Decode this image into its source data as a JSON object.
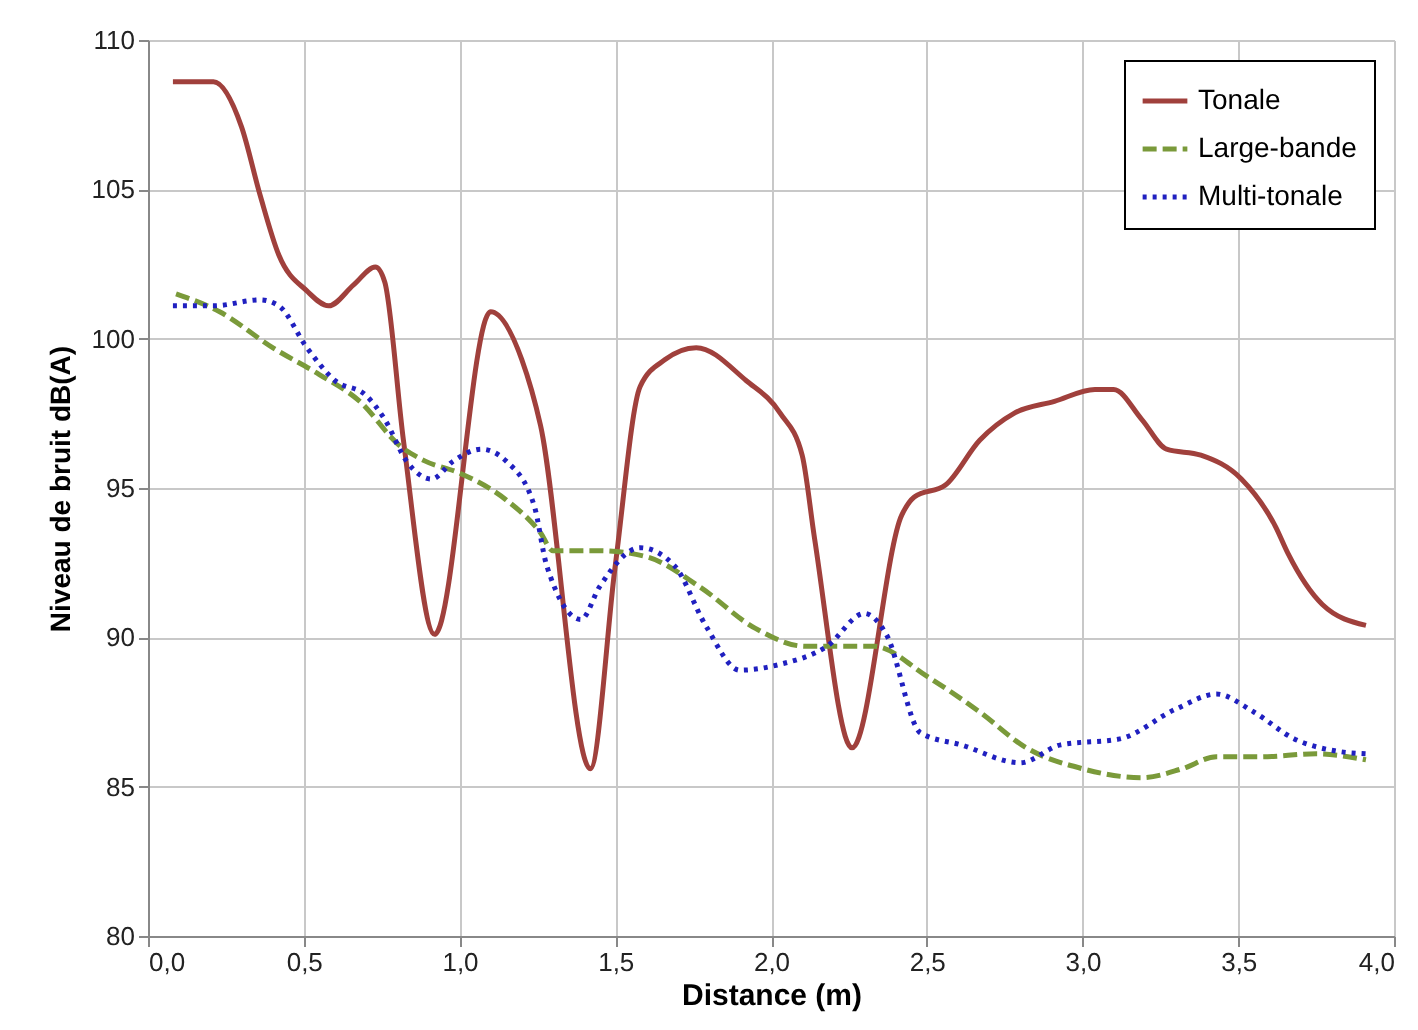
{
  "chart_data": {
    "type": "line",
    "xlabel": "Distance (m)",
    "ylabel": "Niveau de bruit dB(A)",
    "xlim": [
      0,
      4
    ],
    "ylim": [
      80,
      110
    ],
    "xticks": [
      {
        "value": 0,
        "label": "0,0"
      },
      {
        "value": 0.5,
        "label": "0,5"
      },
      {
        "value": 1,
        "label": "1,0"
      },
      {
        "value": 1.5,
        "label": "1,5"
      },
      {
        "value": 2,
        "label": "2,0"
      },
      {
        "value": 2.5,
        "label": "2,5"
      },
      {
        "value": 3,
        "label": "3,0"
      },
      {
        "value": 3.5,
        "label": "3,5"
      },
      {
        "value": 4,
        "label": "4,0"
      }
    ],
    "yticks": [
      80,
      85,
      90,
      95,
      100,
      105,
      110
    ],
    "grid": true,
    "legend": "top right",
    "marker": "none",
    "series": [
      {
        "name": "Tonale",
        "color": "#a0403c",
        "line_style": "solid",
        "x": [
          0.08,
          0.21,
          0.3,
          0.36,
          0.42,
          0.51,
          0.58,
          0.66,
          0.73,
          0.76,
          0.82,
          0.92,
          1.1,
          1.2,
          1.26,
          1.42,
          1.5,
          1.58,
          1.66,
          1.76,
          1.92,
          2.03,
          2.1,
          2.14,
          2.26,
          2.42,
          2.46,
          2.56,
          2.67,
          2.78,
          2.91,
          3.04,
          3.1,
          3.19,
          3.27,
          3.38,
          3.51,
          3.62,
          3.66,
          3.77,
          3.91
        ],
        "values": [
          108.6,
          108.6,
          107.1,
          104.8,
          102.8,
          101.6,
          101.1,
          101.8,
          102.4,
          101.9,
          96.6,
          90.1,
          100.9,
          99.3,
          97.1,
          85.6,
          92.4,
          98.4,
          99.3,
          99.7,
          98.6,
          97.5,
          96.1,
          93.3,
          86.3,
          94.1,
          94.7,
          95.1,
          96.6,
          97.5,
          97.9,
          98.3,
          98.3,
          97.3,
          96.3,
          96.1,
          95.3,
          93.7,
          92.8,
          91.1,
          90.4
        ]
      },
      {
        "name": "Large-bande",
        "color": "#7a9a3a",
        "line_style": "dashed",
        "x": [
          0.09,
          0.23,
          0.4,
          0.55,
          0.68,
          0.81,
          0.89,
          1.0,
          1.15,
          1.26,
          1.3,
          1.45,
          1.6,
          1.77,
          1.95,
          2.11,
          2.33,
          2.5,
          2.67,
          2.82,
          3.0,
          3.19,
          3.32,
          3.43,
          3.57,
          3.75,
          3.91
        ],
        "values": [
          101.5,
          100.9,
          99.7,
          98.8,
          97.9,
          96.4,
          95.9,
          95.5,
          94.6,
          93.5,
          92.9,
          92.9,
          92.7,
          91.7,
          90.3,
          89.7,
          89.7,
          88.7,
          87.5,
          86.3,
          85.6,
          85.3,
          85.6,
          86.0,
          86.0,
          86.1,
          85.9
        ]
      },
      {
        "name": "Multi-tonale",
        "color": "#2020c0",
        "line_style": "dotted",
        "x": [
          0.08,
          0.21,
          0.36,
          0.42,
          0.51,
          0.6,
          0.7,
          0.76,
          0.83,
          0.91,
          0.98,
          1.07,
          1.15,
          1.24,
          1.28,
          1.39,
          1.45,
          1.58,
          1.69,
          1.79,
          1.9,
          2.03,
          2.18,
          2.3,
          2.37,
          2.48,
          2.61,
          2.8,
          2.93,
          3.12,
          3.3,
          3.43,
          3.55,
          3.68,
          3.81,
          3.91
        ],
        "values": [
          101.1,
          101.1,
          101.3,
          101.1,
          99.7,
          98.6,
          98.1,
          97.3,
          95.9,
          95.3,
          95.9,
          96.3,
          95.9,
          94.4,
          92.4,
          90.6,
          91.7,
          93.0,
          92.4,
          90.4,
          88.9,
          89.1,
          89.7,
          90.8,
          90.1,
          86.8,
          86.4,
          85.8,
          86.4,
          86.6,
          87.6,
          88.1,
          87.5,
          86.6,
          86.2,
          86.1
        ]
      }
    ]
  }
}
